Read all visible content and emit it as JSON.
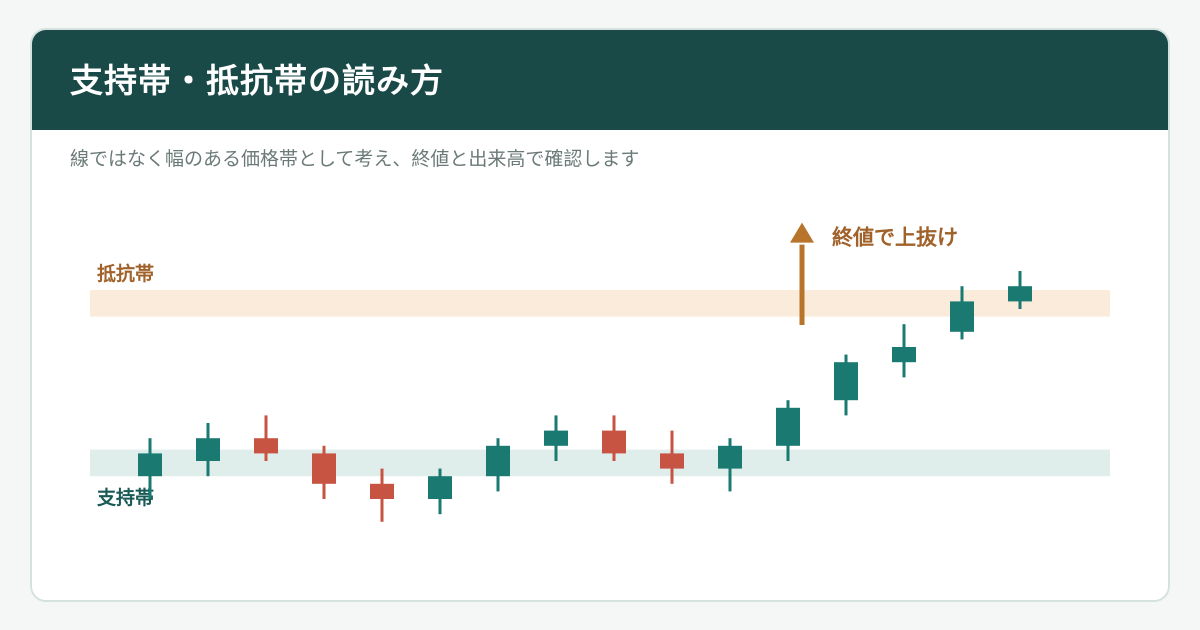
{
  "header": {
    "title": "支持帯・抵抗帯の読み方",
    "subtitle": "線ではなく幅のある価格帯として考え、終値と出来高で確認します"
  },
  "colors": {
    "header_bg": "#1a4a48",
    "up": "#1a7a72",
    "down": "#c75443",
    "resistance_band": "#fbebdb",
    "support_band": "#dfeeeb",
    "arrow": "#b8742a",
    "resistance_label": "#a0622a",
    "support_label": "#1a5a55"
  },
  "chart_data": {
    "type": "candlestick",
    "yrange": [
      0,
      100
    ],
    "resistance_zone": {
      "label": "抵抗帯",
      "low": 68,
      "high": 75
    },
    "support_zone": {
      "label": "支持帯",
      "low": 26,
      "high": 33
    },
    "annotation": {
      "label": "終値で上抜け",
      "arrow_from": 70,
      "arrow_to": 88,
      "after_candle": 11
    },
    "candles": [
      {
        "open": 26,
        "close": 32,
        "high": 36,
        "low": 20
      },
      {
        "open": 30,
        "close": 36,
        "high": 40,
        "low": 26
      },
      {
        "open": 36,
        "close": 32,
        "high": 42,
        "low": 30
      },
      {
        "open": 32,
        "close": 24,
        "high": 34,
        "low": 20
      },
      {
        "open": 24,
        "close": 20,
        "high": 28,
        "low": 14
      },
      {
        "open": 20,
        "close": 26,
        "high": 28,
        "low": 16
      },
      {
        "open": 26,
        "close": 34,
        "high": 36,
        "low": 22
      },
      {
        "open": 34,
        "close": 38,
        "high": 42,
        "low": 30
      },
      {
        "open": 38,
        "close": 32,
        "high": 42,
        "low": 30
      },
      {
        "open": 32,
        "close": 28,
        "high": 38,
        "low": 24
      },
      {
        "open": 28,
        "close": 34,
        "high": 36,
        "low": 22
      },
      {
        "open": 34,
        "close": 44,
        "high": 46,
        "low": 30
      },
      {
        "open": 46,
        "close": 56,
        "high": 58,
        "low": 42
      },
      {
        "open": 56,
        "close": 60,
        "high": 66,
        "low": 52
      },
      {
        "open": 64,
        "close": 72,
        "high": 76,
        "low": 62
      },
      {
        "open": 72,
        "close": 76,
        "high": 80,
        "low": 70
      }
    ]
  }
}
